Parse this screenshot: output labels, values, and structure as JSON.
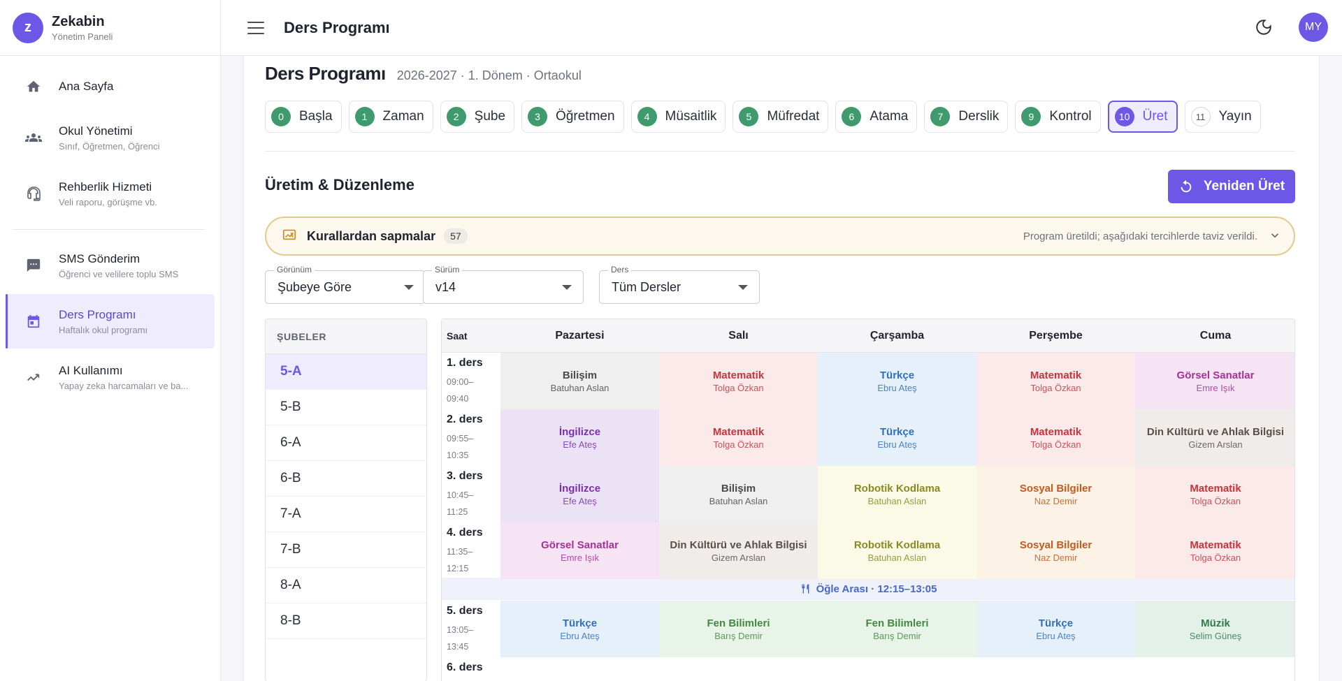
{
  "brand": {
    "logo_letter": "z",
    "name": "Zekabin",
    "subtitle": "Yönetim Paneli"
  },
  "sidebar": {
    "items": [
      {
        "icon": "home-icon",
        "label": "Ana Sayfa",
        "sub": ""
      },
      {
        "icon": "people-icon",
        "label": "Okul Yönetimi",
        "sub": "Sınıf, Öğretmen, Öğrenci"
      },
      {
        "icon": "headset-icon",
        "label": "Rehberlik Hizmeti",
        "sub": "Veli raporu, görüşme vb."
      },
      {
        "icon": "sms-icon",
        "label": "SMS Gönderim",
        "sub": "Öğrenci ve velilere toplu SMS"
      },
      {
        "icon": "calendar-icon",
        "label": "Ders Programı",
        "sub": "Haftalık okul programı"
      },
      {
        "icon": "trending-icon",
        "label": "AI Kullanımı",
        "sub": "Yapay zeka harcamaları ve ba..."
      }
    ]
  },
  "topbar": {
    "title": "Ders Programı",
    "avatar_initials": "MY"
  },
  "page": {
    "title": "Ders Programı",
    "meta": "2026-2027 · 1. Dönem · Ortaokul",
    "section_title": "Üretim & Düzenleme",
    "regenerate_label": "Yeniden Üret"
  },
  "steps": [
    {
      "num": "0",
      "label": "Başla"
    },
    {
      "num": "1",
      "label": "Zaman"
    },
    {
      "num": "2",
      "label": "Şube"
    },
    {
      "num": "3",
      "label": "Öğretmen"
    },
    {
      "num": "4",
      "label": "Müsaitlik"
    },
    {
      "num": "5",
      "label": "Müfredat"
    },
    {
      "num": "6",
      "label": "Atama"
    },
    {
      "num": "7",
      "label": "Derslik"
    },
    {
      "num": "9",
      "label": "Kontrol"
    },
    {
      "num": "10",
      "label": "Üret"
    },
    {
      "num": "11",
      "label": "Yayın"
    }
  ],
  "alert": {
    "title": "Kurallardan sapmalar",
    "count": "57",
    "message": "Program üretildi; aşağıdaki tercihlerde taviz verildi."
  },
  "filters": {
    "view": {
      "label": "Görünüm",
      "value": "Şubeye Göre"
    },
    "version": {
      "label": "Sürüm",
      "value": "v14"
    },
    "subject": {
      "label": "Ders",
      "value": "Tüm Dersler"
    }
  },
  "branches": {
    "header": "ŞUBELER",
    "items": [
      "5-A",
      "5-B",
      "6-A",
      "6-B",
      "7-A",
      "7-B",
      "8-A",
      "8-B"
    ]
  },
  "schedule": {
    "time_header": "Saat",
    "days": [
      "Pazartesi",
      "Salı",
      "Çarşamba",
      "Perşembe",
      "Cuma"
    ],
    "lunch": "Öğle Arası · 12:15–13:05",
    "periods": [
      {
        "name": "1. ders",
        "start": "09:00–",
        "end": "09:40"
      },
      {
        "name": "2. ders",
        "start": "09:55–",
        "end": "10:35"
      },
      {
        "name": "3. ders",
        "start": "10:45–",
        "end": "11:25"
      },
      {
        "name": "4. ders",
        "start": "11:35–",
        "end": "12:15"
      },
      {
        "name": "5. ders",
        "start": "13:05–",
        "end": "13:45"
      },
      {
        "name": "6. ders",
        "start": "",
        "end": ""
      }
    ],
    "rows": [
      [
        {
          "subject": "Bilişim",
          "teacher": "Batuhan Aslan"
        },
        {
          "subject": "Matematik",
          "teacher": "Tolga Özkan"
        },
        {
          "subject": "Türkçe",
          "teacher": "Ebru Ateş"
        },
        {
          "subject": "Matematik",
          "teacher": "Tolga Özkan"
        },
        {
          "subject": "Görsel Sanatlar",
          "teacher": "Emre Işık"
        }
      ],
      [
        {
          "subject": "İngilizce",
          "teacher": "Efe Ateş"
        },
        {
          "subject": "Matematik",
          "teacher": "Tolga Özkan"
        },
        {
          "subject": "Türkçe",
          "teacher": "Ebru Ateş"
        },
        {
          "subject": "Matematik",
          "teacher": "Tolga Özkan"
        },
        {
          "subject": "Din Kültürü ve Ahlak Bilgisi",
          "teacher": "Gizem Arslan"
        }
      ],
      [
        {
          "subject": "İngilizce",
          "teacher": "Efe Ateş"
        },
        {
          "subject": "Bilişim",
          "teacher": "Batuhan Aslan"
        },
        {
          "subject": "Robotik Kodlama",
          "teacher": "Batuhan Aslan"
        },
        {
          "subject": "Sosyal Bilgiler",
          "teacher": "Naz Demir"
        },
        {
          "subject": "Matematik",
          "teacher": "Tolga Özkan"
        }
      ],
      [
        {
          "subject": "Görsel Sanatlar",
          "teacher": "Emre Işık"
        },
        {
          "subject": "Din Kültürü ve Ahlak Bilgisi",
          "teacher": "Gizem Arslan"
        },
        {
          "subject": "Robotik Kodlama",
          "teacher": "Batuhan Aslan"
        },
        {
          "subject": "Sosyal Bilgiler",
          "teacher": "Naz Demir"
        },
        {
          "subject": "Matematik",
          "teacher": "Tolga Özkan"
        }
      ],
      [
        {
          "subject": "Türkçe",
          "teacher": "Ebru Ateş"
        },
        {
          "subject": "Fen Bilimleri",
          "teacher": "Barış Demir"
        },
        {
          "subject": "Fen Bilimleri",
          "teacher": "Barış Demir"
        },
        {
          "subject": "Türkçe",
          "teacher": "Ebru Ateş"
        },
        {
          "subject": "Müzik",
          "teacher": "Selim Güneş"
        }
      ]
    ]
  },
  "colors": {
    "accent": "#6c57e6",
    "step_done": "#3f9a6d",
    "subjects": {
      "Bilişim": {
        "bg": "#efefef",
        "fg": "#4a4a4a"
      },
      "Matematik": {
        "bg": "#fce9ea",
        "fg": "#c6353b"
      },
      "Türkçe": {
        "bg": "#e6f0fb",
        "fg": "#2f6fc0"
      },
      "Görsel Sanatlar": {
        "bg": "#f6e3f3",
        "fg": "#a7309a"
      },
      "İngilizce": {
        "bg": "#ebe3f5",
        "fg": "#7a2fb0"
      },
      "Din Kültürü ve Ahlak Bilgisi": {
        "bg": "#efecea",
        "fg": "#5a4e48"
      },
      "Robotik Kodlama": {
        "bg": "#fbfae6",
        "fg": "#8a8a24"
      },
      "Sosyal Bilgiler": {
        "bg": "#fdf2e6",
        "fg": "#c55a1c"
      },
      "Fen Bilimleri": {
        "bg": "#e9f4e8",
        "fg": "#3f8a3f"
      },
      "Müzik": {
        "bg": "#e3f1e8",
        "fg": "#2e7a49"
      }
    }
  }
}
